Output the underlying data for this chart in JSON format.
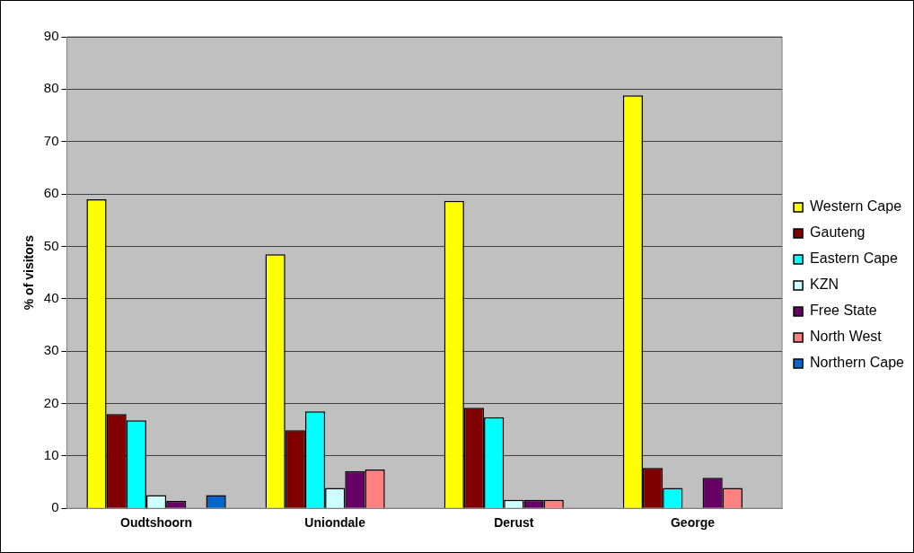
{
  "chart_data": {
    "type": "bar",
    "ylabel": "% of visitors",
    "categories": [
      "Oudtshoorn",
      "Uniondale",
      "Derust",
      "George"
    ],
    "series": [
      {
        "name": "Western Cape",
        "color": "#ffff00",
        "values": [
          59,
          48.5,
          58.7,
          78.8
        ]
      },
      {
        "name": "Gauteng",
        "color": "#800000",
        "values": [
          18,
          14.9,
          19.2,
          7.7
        ]
      },
      {
        "name": "Eastern Cape",
        "color": "#00ffff",
        "values": [
          16.8,
          18.5,
          17.4,
          3.9
        ]
      },
      {
        "name": "KZN",
        "color": "#ccffff",
        "values": [
          2.5,
          3.9,
          1.6,
          0
        ]
      },
      {
        "name": "Free State",
        "color": "#660066",
        "values": [
          1.4,
          7.1,
          1.6,
          5.8
        ]
      },
      {
        "name": "North West",
        "color": "#ff8080",
        "values": [
          0,
          7.4,
          1.6,
          3.9
        ]
      },
      {
        "name": "Northern Cape",
        "color": "#0066cc",
        "values": [
          2.5,
          0,
          0,
          0
        ]
      }
    ],
    "ylim": [
      0,
      90
    ],
    "yticks": [
      0,
      10,
      20,
      30,
      40,
      50,
      60,
      70,
      80,
      90
    ],
    "grid": "y",
    "legend": "right"
  }
}
